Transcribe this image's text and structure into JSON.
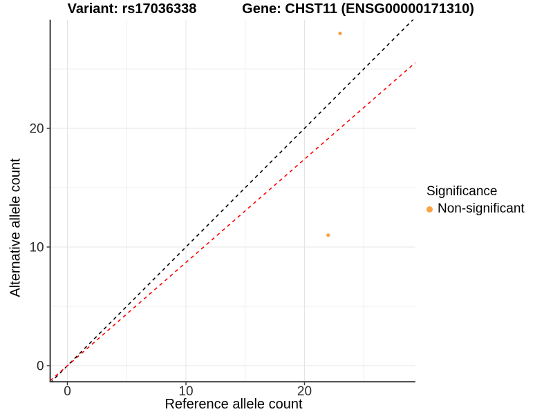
{
  "titles": {
    "variant": "Variant: rs17036338",
    "gene": "Gene: CHST11 (ENSG00000171310)"
  },
  "axes": {
    "x_label": "Reference allele count",
    "y_label": "Alternative allele count"
  },
  "legend": {
    "title": "Significance",
    "items": [
      {
        "label": "Non-significant",
        "color": "#F9A242"
      }
    ]
  },
  "chart_data": {
    "type": "scatter",
    "title": "Variant: rs17036338  /  Gene: CHST11 (ENSG00000171310)",
    "xlabel": "Reference allele count",
    "ylabel": "Alternative allele count",
    "xlim": [
      -1.45,
      29.35
    ],
    "ylim": [
      -1.35,
      29.15
    ],
    "x_ticks": [
      0,
      10,
      20
    ],
    "y_ticks": [
      0,
      10,
      20
    ],
    "x_minor_ticks": [
      5,
      15,
      25
    ],
    "y_minor_ticks": [
      5,
      15,
      25
    ],
    "grid": true,
    "legend_position": "right",
    "series": [
      {
        "name": "Non-significant",
        "color": "#F9A242",
        "points": [
          {
            "x": 23,
            "y": 28
          },
          {
            "x": 22,
            "y": 11
          }
        ]
      }
    ],
    "reference_lines": [
      {
        "name": "identity-line",
        "slope": 1.0,
        "intercept": 0,
        "color": "#000000",
        "style": "dashed"
      },
      {
        "name": "expected-ratio-line",
        "slope": 0.87,
        "intercept": 0,
        "color": "#FF0000",
        "style": "dashed"
      }
    ],
    "colors": {
      "major_grid": "#e4e4e4",
      "minor_grid": "#efefef",
      "axis_line": "#3a3a3a",
      "tick_text": "#2b2b2b"
    }
  }
}
